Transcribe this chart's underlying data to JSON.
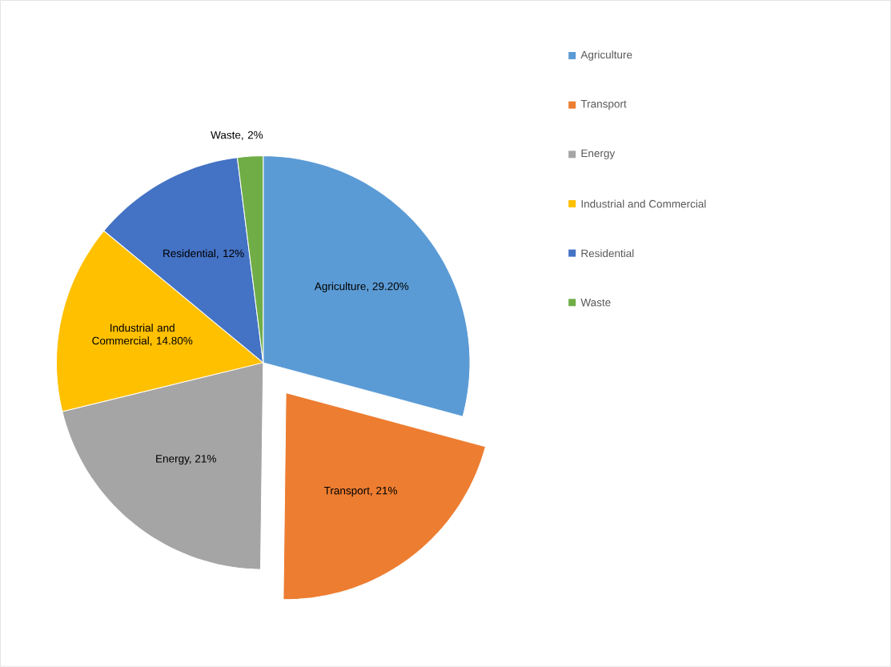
{
  "chart_data": {
    "type": "pie",
    "categories": [
      "Agriculture",
      "Transport",
      "Energy",
      "Industrial and Commercial",
      "Residential",
      "Waste"
    ],
    "values": [
      29.2,
      21,
      21,
      14.8,
      12,
      2
    ],
    "value_labels": [
      "Agriculture, 29.20%",
      "Transport, 21%",
      "Energy, 21%",
      "Industrial and Commercial, 14.80%",
      "Residential, 12%",
      "Waste, 2%"
    ],
    "colors": [
      "#5b9bd5",
      "#ed7d31",
      "#a5a5a5",
      "#ffc000",
      "#4472c4",
      "#70ad47"
    ],
    "legend": "right"
  }
}
